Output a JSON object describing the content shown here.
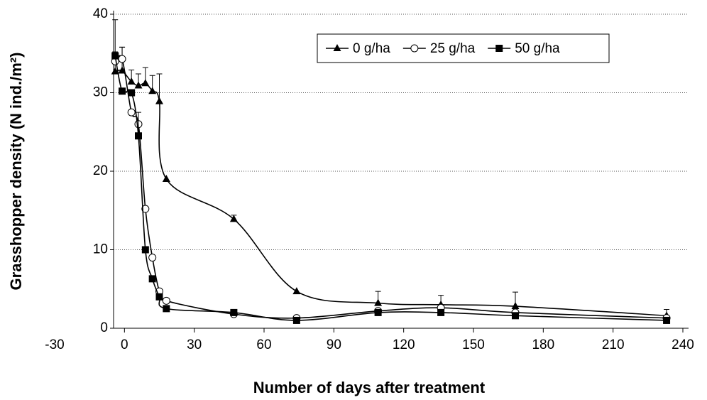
{
  "chart_data": {
    "type": "line",
    "xlabel": "Number of days after treatment",
    "ylabel": "Grasshopper density (N ind./m²)",
    "x": [
      -4,
      -1,
      3,
      6,
      9,
      12,
      15,
      18,
      47,
      74,
      109,
      136,
      168,
      233
    ],
    "series": [
      {
        "name": "0 g/ha",
        "color": "#000000",
        "marker": "triangle",
        "values": [
          32.7,
          32.8,
          31.4,
          30.9,
          31.2,
          30.2,
          28.9,
          19,
          13.9,
          4.7,
          3.2,
          3.0,
          2.8,
          1.6
        ],
        "errors": [
          2.5,
          3.0,
          1.5,
          1.5,
          2.0,
          2.0,
          3.5,
          null,
          0.5,
          null,
          1.5,
          1.2,
          1.8,
          0.8
        ]
      },
      {
        "name": "25 g/ha",
        "color": "#000000",
        "marker": "circle",
        "values": [
          34.0,
          34.3,
          27.5,
          26.0,
          15.2,
          9.0,
          4.7,
          3.5,
          1.8,
          1.3,
          2.2,
          2.6,
          2.0,
          1.3
        ],
        "errors": [
          null,
          1.5,
          null,
          null,
          null,
          null,
          null,
          null,
          null,
          null,
          null,
          null,
          null,
          null
        ]
      },
      {
        "name": "50 g/ha",
        "color": "#000000",
        "marker": "square",
        "values": [
          34.7,
          30.2,
          30.0,
          24.5,
          10.0,
          6.3,
          4.0,
          2.5,
          2.0,
          1.0,
          2.0,
          2.0,
          1.6,
          1.0
        ],
        "errors": [
          4.6,
          null,
          null,
          3.0,
          null,
          null,
          null,
          null,
          null,
          null,
          null,
          null,
          null,
          null
        ]
      }
    ],
    "xlim": [
      -30,
      240
    ],
    "xticks": [
      -30,
      0,
      30,
      60,
      90,
      120,
      150,
      180,
      210,
      240
    ],
    "ylim": [
      0,
      40
    ],
    "yticks": [
      0,
      10,
      20,
      30,
      40
    ],
    "grid": true,
    "legend": "top-right"
  }
}
